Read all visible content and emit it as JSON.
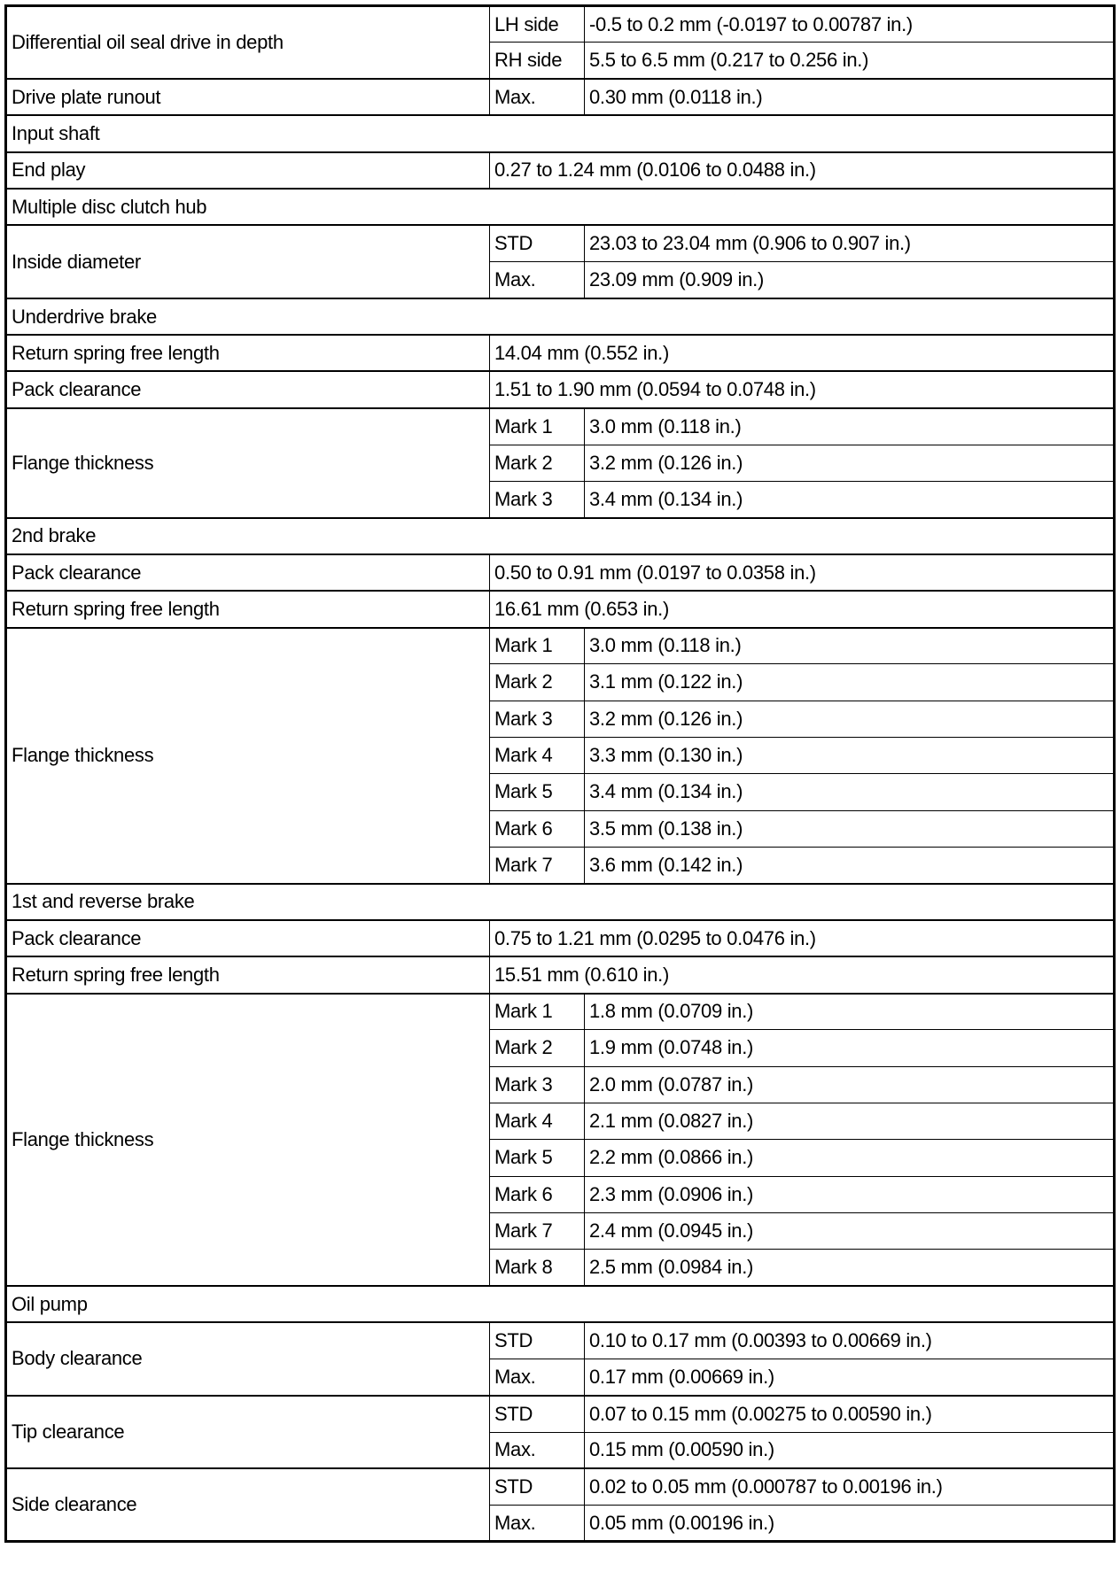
{
  "rows": [
    {
      "label": "Differential oil seal drive in depth",
      "subs": [
        {
          "cond": "LH side",
          "value": "-0.5 to 0.2 mm (-0.0197 to 0.00787 in.)"
        },
        {
          "cond": "RH side",
          "value": "5.5 to 6.5 mm (0.217 to 0.256 in.)"
        }
      ]
    },
    {
      "label": "Drive plate runout",
      "subs": [
        {
          "cond": "Max.",
          "value": "0.30 mm (0.0118 in.)"
        }
      ]
    },
    {
      "section": "Input shaft"
    },
    {
      "label": "End play",
      "value": "0.27 to 1.24 mm (0.0106 to 0.0488 in.)"
    },
    {
      "section": "Multiple disc clutch hub"
    },
    {
      "label": "Inside diameter",
      "subs": [
        {
          "cond": "STD",
          "value": "23.03 to 23.04 mm (0.906 to 0.907 in.)"
        },
        {
          "cond": "Max.",
          "value": "23.09 mm (0.909 in.)"
        }
      ]
    },
    {
      "section": "Underdrive brake"
    },
    {
      "label": "Return spring free length",
      "value": "14.04 mm (0.552 in.)"
    },
    {
      "label": "Pack clearance",
      "value": "1.51 to 1.90 mm (0.0594 to 0.0748 in.)"
    },
    {
      "label": "Flange thickness",
      "subs": [
        {
          "cond": "Mark 1",
          "value": "3.0 mm (0.118 in.)"
        },
        {
          "cond": "Mark 2",
          "value": "3.2 mm (0.126 in.)"
        },
        {
          "cond": "Mark 3",
          "value": "3.4 mm (0.134 in.)"
        }
      ]
    },
    {
      "section": "2nd brake"
    },
    {
      "label": "Pack clearance",
      "value": "0.50 to 0.91 mm (0.0197 to 0.0358 in.)"
    },
    {
      "label": "Return spring free length",
      "value": "16.61 mm (0.653 in.)"
    },
    {
      "label": "Flange thickness",
      "subs": [
        {
          "cond": "Mark 1",
          "value": "3.0 mm (0.118 in.)"
        },
        {
          "cond": "Mark 2",
          "value": "3.1 mm (0.122 in.)"
        },
        {
          "cond": "Mark 3",
          "value": "3.2 mm (0.126 in.)"
        },
        {
          "cond": "Mark 4",
          "value": "3.3 mm (0.130 in.)"
        },
        {
          "cond": "Mark 5",
          "value": "3.4 mm (0.134 in.)"
        },
        {
          "cond": "Mark 6",
          "value": "3.5 mm (0.138 in.)"
        },
        {
          "cond": "Mark 7",
          "value": "3.6 mm (0.142 in.)"
        }
      ]
    },
    {
      "section": "1st and reverse brake"
    },
    {
      "label": "Pack clearance",
      "value": "0.75 to 1.21 mm (0.0295 to 0.0476 in.)"
    },
    {
      "label": "Return spring free length",
      "value": "15.51 mm (0.610 in.)"
    },
    {
      "label": "Flange thickness",
      "subs": [
        {
          "cond": "Mark 1",
          "value": "1.8 mm (0.0709 in.)"
        },
        {
          "cond": "Mark 2",
          "value": "1.9 mm (0.0748 in.)"
        },
        {
          "cond": "Mark 3",
          "value": "2.0 mm (0.0787 in.)"
        },
        {
          "cond": "Mark 4",
          "value": "2.1 mm (0.0827 in.)"
        },
        {
          "cond": "Mark 5",
          "value": "2.2 mm (0.0866 in.)"
        },
        {
          "cond": "Mark 6",
          "value": "2.3 mm (0.0906 in.)"
        },
        {
          "cond": "Mark 7",
          "value": "2.4 mm (0.0945 in.)"
        },
        {
          "cond": "Mark 8",
          "value": "2.5 mm (0.0984 in.)"
        }
      ]
    },
    {
      "section": "Oil pump"
    },
    {
      "label": "Body clearance",
      "subs": [
        {
          "cond": "STD",
          "value": "0.10 to 0.17 mm (0.00393 to 0.00669 in.)"
        },
        {
          "cond": "Max.",
          "value": "0.17 mm (0.00669 in.)"
        }
      ]
    },
    {
      "label": "Tip clearance",
      "subs": [
        {
          "cond": "STD",
          "value": "0.07 to 0.15 mm (0.00275 to 0.00590 in.)"
        },
        {
          "cond": "Max.",
          "value": "0.15 mm (0.00590 in.)"
        }
      ]
    },
    {
      "label": "Side clearance",
      "subs": [
        {
          "cond": "STD",
          "value": "0.02 to 0.05 mm (0.000787 to 0.00196 in.)"
        },
        {
          "cond": "Max.",
          "value": "0.05 mm (0.00196 in.)"
        }
      ]
    }
  ]
}
